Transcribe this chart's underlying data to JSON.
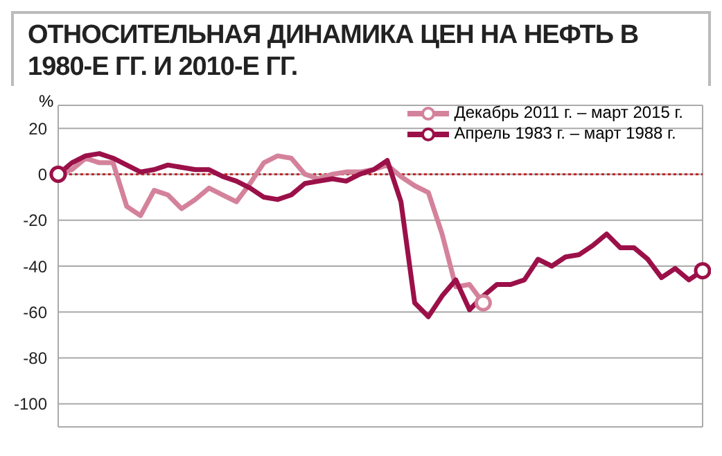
{
  "chart_data": {
    "type": "line",
    "title": "ОТНОСИТЕЛЬНАЯ ДИНАМИКА ЦЕН НА НЕФТЬ В 1980-Е ГГ. И 2010-Е ГГ.",
    "ylabel": "%",
    "categories": [
      null,
      null,
      null,
      null,
      null,
      null,
      null,
      null,
      null,
      null,
      null,
      null,
      null,
      null,
      null,
      null,
      null,
      null,
      null,
      null,
      null,
      null,
      null,
      null,
      null,
      null,
      null,
      null,
      null,
      null,
      null,
      null,
      null,
      null,
      null,
      null,
      null,
      null,
      null,
      null,
      null,
      null,
      null,
      null,
      null,
      null,
      null,
      null
    ],
    "series": [
      {
        "name": "Декабрь 2011 г. – март 2015 г.",
        "color": "#d4829b",
        "values": [
          0,
          2,
          7,
          5,
          5,
          -14,
          -18,
          -7,
          -9,
          -15,
          -11,
          -6,
          -9,
          -12,
          -4,
          5,
          8,
          7,
          0,
          -2,
          0,
          1,
          1,
          2,
          4,
          -1,
          -5,
          -8,
          -26,
          -49,
          -48,
          -56,
          null,
          null,
          null,
          null,
          null,
          null,
          null,
          null,
          null,
          null,
          null,
          null,
          null,
          null,
          null,
          null
        ]
      },
      {
        "name": "Апрель 1983 г. – март 1988 г.",
        "color": "#9b1048",
        "values": [
          0,
          5,
          8,
          9,
          7,
          4,
          1,
          2,
          4,
          3,
          2,
          2,
          -1,
          -3,
          -6,
          -10,
          -11,
          -9,
          -4,
          -3,
          -2,
          -3,
          0,
          2,
          6,
          -12,
          -56,
          -62,
          -53,
          -46,
          -59,
          -53,
          -48,
          -48,
          -46,
          -37,
          -40,
          -36,
          -35,
          -31,
          -26,
          -32,
          -32,
          -37,
          -45,
          -41,
          -46,
          -42
        ]
      }
    ],
    "ylim": [
      -110,
      30
    ],
    "yticks": [
      -100,
      -80,
      -60,
      -40,
      -20,
      0,
      20
    ],
    "tick_labels": "y",
    "grid": true,
    "legend": "top right",
    "marker": "none",
    "line_style": "solid",
    "ref_lines": [
      {
        "axis": "y",
        "value": 0,
        "color": "#c0282d",
        "line_style": "dotted"
      }
    ]
  }
}
